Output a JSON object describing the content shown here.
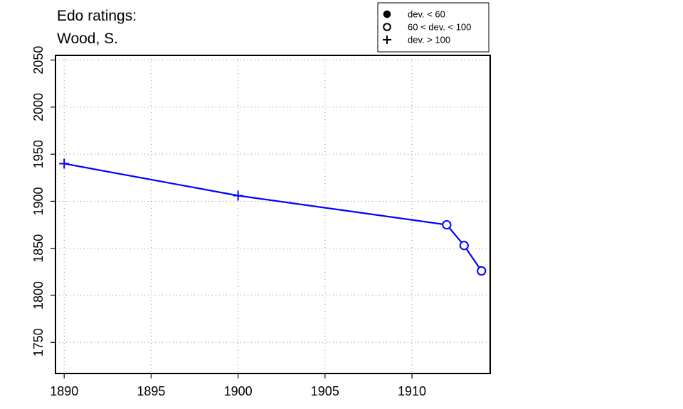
{
  "chart_data": {
    "type": "line",
    "title_lines": [
      "Edo ratings:",
      "Wood, S."
    ],
    "xlabel": "",
    "ylabel": "",
    "xlim": [
      1889.5,
      1914.5
    ],
    "ylim": [
      1717,
      2055
    ],
    "x_ticks": [
      1890,
      1895,
      1900,
      1905,
      1910
    ],
    "y_ticks": [
      1750,
      1800,
      1850,
      1900,
      1950,
      2000,
      2050
    ],
    "grid": true,
    "legend_position": "top-right",
    "legend": [
      {
        "marker": "filled-circle",
        "label": "dev. < 60"
      },
      {
        "marker": "open-circle",
        "label": "60 < dev. < 100"
      },
      {
        "marker": "plus",
        "label": "dev. > 100"
      }
    ],
    "series": [
      {
        "color": "#0000ff",
        "points": [
          {
            "x": 1890,
            "y": 1940,
            "marker": "plus"
          },
          {
            "x": 1900,
            "y": 1906,
            "marker": "plus"
          },
          {
            "x": 1912,
            "y": 1875,
            "marker": "open-circle"
          },
          {
            "x": 1913,
            "y": 1853,
            "marker": "open-circle"
          },
          {
            "x": 1914,
            "y": 1826,
            "marker": "open-circle"
          }
        ]
      }
    ]
  }
}
